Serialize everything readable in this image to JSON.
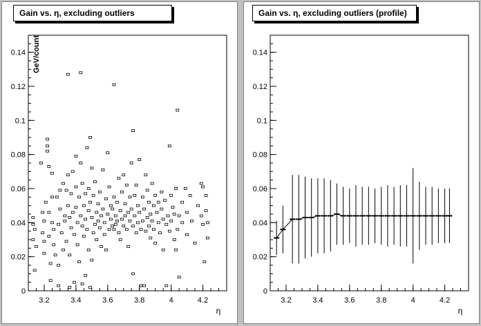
{
  "canvas_background": "#c0c0c0",
  "pad_background": "#ffffff",
  "chart_data": [
    {
      "type": "scatter",
      "title": "Gain vs. η, excluding outliers",
      "xlabel": "η",
      "ylabel": "GeV/count",
      "xlim": [
        3.1,
        4.35
      ],
      "ylim": [
        0,
        0.15
      ],
      "xticks": [
        "3.2",
        "3.4",
        "3.6",
        "3.8",
        "4",
        "4.2"
      ],
      "yticks": [
        "0",
        "0.02",
        "0.04",
        "0.06",
        "0.08",
        "0.1",
        "0.12",
        "0.14"
      ],
      "grid": false,
      "marker": "open-box",
      "points": [
        [
          3.13,
          0.043
        ],
        [
          3.13,
          0.039
        ],
        [
          3.13,
          0.03
        ],
        [
          3.14,
          0.036
        ],
        [
          3.14,
          0.012
        ],
        [
          3.15,
          0.026
        ],
        [
          3.18,
          0.075
        ],
        [
          3.19,
          0.046
        ],
        [
          3.19,
          0.034
        ],
        [
          3.2,
          0.029
        ],
        [
          3.2,
          0.022
        ],
        [
          3.2,
          0.041
        ],
        [
          3.21,
          0.052
        ],
        [
          3.22,
          0.089
        ],
        [
          3.22,
          0.085
        ],
        [
          3.22,
          0.082
        ],
        [
          3.23,
          0.073
        ],
        [
          3.23,
          0.046
        ],
        [
          3.23,
          0.032
        ],
        [
          3.24,
          0.016
        ],
        [
          3.24,
          0.006
        ],
        [
          3.25,
          0.069
        ],
        [
          3.25,
          0.055
        ],
        [
          3.25,
          0.04
        ],
        [
          3.26,
          0.036
        ],
        [
          3.26,
          0.027
        ],
        [
          3.27,
          0.021
        ],
        [
          3.28,
          0.055
        ],
        [
          3.29,
          0.039
        ],
        [
          3.29,
          0.015
        ],
        [
          3.29,
          0.003
        ],
        [
          3.3,
          0.059
        ],
        [
          3.3,
          0.048
        ],
        [
          3.31,
          0.034
        ],
        [
          3.32,
          0.024
        ],
        [
          3.32,
          0.063
        ],
        [
          3.33,
          0.044
        ],
        [
          3.33,
          0.041
        ],
        [
          3.34,
          0.059
        ],
        [
          3.34,
          0.029
        ],
        [
          3.35,
          0.05
        ],
        [
          3.35,
          0.127
        ],
        [
          3.35,
          0.068
        ],
        [
          3.36,
          0.043
        ],
        [
          3.36,
          0.021
        ],
        [
          3.36,
          0.002
        ],
        [
          3.37,
          0.057
        ],
        [
          3.37,
          0.037
        ],
        [
          3.38,
          0.07
        ],
        [
          3.38,
          0.046
        ],
        [
          3.39,
          0.033
        ],
        [
          3.39,
          0.005
        ],
        [
          3.4,
          0.079
        ],
        [
          3.4,
          0.061
        ],
        [
          3.4,
          0.049
        ],
        [
          3.41,
          0.04
        ],
        [
          3.41,
          0.027
        ],
        [
          3.42,
          0.017
        ],
        [
          3.42,
          0.055
        ],
        [
          3.43,
          0.128
        ],
        [
          3.43,
          0.075
        ],
        [
          3.43,
          0.044
        ],
        [
          3.44,
          0.063
        ],
        [
          3.44,
          0.038
        ],
        [
          3.44,
          0.004
        ],
        [
          3.45,
          0.05
        ],
        [
          3.45,
          0.032
        ],
        [
          3.46,
          0.057
        ],
        [
          3.46,
          0.042
        ],
        [
          3.46,
          0.009
        ],
        [
          3.47,
          0.084
        ],
        [
          3.47,
          0.036
        ],
        [
          3.48,
          0.06
        ],
        [
          3.48,
          0.047
        ],
        [
          3.48,
          0.024
        ],
        [
          3.49,
          0.09
        ],
        [
          3.49,
          0.052
        ],
        [
          3.49,
          0.002
        ],
        [
          3.5,
          0.072
        ],
        [
          3.5,
          0.043
        ],
        [
          3.5,
          0.018
        ],
        [
          3.51,
          0.056
        ],
        [
          3.51,
          0.034
        ],
        [
          3.52,
          0.064
        ],
        [
          3.52,
          0.039
        ],
        [
          3.53,
          0.046
        ],
        [
          3.53,
          0.03
        ],
        [
          3.54,
          0.051
        ],
        [
          3.54,
          0.041
        ],
        [
          3.55,
          0.058
        ],
        [
          3.55,
          0.037
        ],
        [
          3.56,
          0.044
        ],
        [
          3.56,
          0.026
        ],
        [
          3.57,
          0.071
        ],
        [
          3.57,
          0.048
        ],
        [
          3.58,
          0.04
        ],
        [
          3.58,
          0.033
        ],
        [
          3.59,
          0.054
        ],
        [
          3.59,
          0.024
        ],
        [
          3.6,
          0.045
        ],
        [
          3.6,
          0.081
        ],
        [
          3.61,
          0.061
        ],
        [
          3.61,
          0.036
        ],
        [
          3.62,
          0.05
        ],
        [
          3.62,
          0.042
        ],
        [
          3.63,
          0.038
        ],
        [
          3.63,
          0.048
        ],
        [
          3.64,
          0.121
        ],
        [
          3.64,
          0.055
        ],
        [
          3.64,
          0.036
        ],
        [
          3.65,
          0.044
        ],
        [
          3.65,
          0.039
        ],
        [
          3.66,
          0.052
        ],
        [
          3.66,
          0.041
        ],
        [
          3.67,
          0.066
        ],
        [
          3.67,
          0.034
        ],
        [
          3.68,
          0.047
        ],
        [
          3.68,
          0.03
        ],
        [
          3.69,
          0.058
        ],
        [
          3.69,
          0.042
        ],
        [
          3.7,
          0.068
        ],
        [
          3.7,
          0.038
        ],
        [
          3.71,
          0.051
        ],
        [
          3.71,
          0.044
        ],
        [
          3.72,
          0.062
        ],
        [
          3.72,
          0.036
        ],
        [
          3.73,
          0.046
        ],
        [
          3.73,
          0.026
        ],
        [
          3.74,
          0.055
        ],
        [
          3.74,
          0.041
        ],
        [
          3.75,
          0.075
        ],
        [
          3.75,
          0.048
        ],
        [
          3.76,
          0.094
        ],
        [
          3.76,
          0.038
        ],
        [
          3.76,
          0.01
        ],
        [
          3.77,
          0.056
        ],
        [
          3.77,
          0.044
        ],
        [
          3.78,
          0.062
        ],
        [
          3.78,
          0.034
        ],
        [
          3.79,
          0.05
        ],
        [
          3.79,
          0.04
        ],
        [
          3.8,
          0.077
        ],
        [
          3.8,
          0.046
        ],
        [
          3.81,
          0.036
        ],
        [
          3.81,
          0.003
        ],
        [
          3.82,
          0.055
        ],
        [
          3.82,
          0.041
        ],
        [
          3.83,
          0.048
        ],
        [
          3.83,
          0.003
        ],
        [
          3.84,
          0.068
        ],
        [
          3.84,
          0.035
        ],
        [
          3.85,
          0.059
        ],
        [
          3.85,
          0.043
        ],
        [
          3.86,
          0.052
        ],
        [
          3.86,
          0.038
        ],
        [
          3.87,
          0.045
        ],
        [
          3.87,
          0.031
        ],
        [
          3.88,
          0.063
        ],
        [
          3.88,
          0.041
        ],
        [
          3.89,
          0.05
        ],
        [
          3.89,
          0.036
        ],
        [
          3.9,
          0.056
        ],
        [
          3.9,
          0.028
        ],
        [
          3.91,
          0.046
        ],
        [
          3.92,
          0.04
        ],
        [
          3.92,
          0.052
        ],
        [
          3.93,
          0.034
        ],
        [
          3.94,
          0.058
        ],
        [
          3.94,
          0.048
        ],
        [
          3.95,
          0.042
        ],
        [
          3.95,
          0.024
        ],
        [
          3.96,
          0.053
        ],
        [
          3.97,
          0.039
        ],
        [
          3.97,
          0.003
        ],
        [
          3.98,
          0.044
        ],
        [
          3.99,
          0.085
        ],
        [
          3.99,
          0.035
        ],
        [
          4.0,
          0.056
        ],
        [
          4.0,
          0.041
        ],
        [
          4.01,
          0.049
        ],
        [
          4.02,
          0.03
        ],
        [
          4.02,
          0.045
        ],
        [
          4.03,
          0.06
        ],
        [
          4.03,
          0.024
        ],
        [
          4.04,
          0.106
        ],
        [
          4.04,
          0.036
        ],
        [
          4.05,
          0.044
        ],
        [
          4.05,
          0.008
        ],
        [
          4.07,
          0.052
        ],
        [
          4.07,
          0.04
        ],
        [
          4.09,
          0.06
        ],
        [
          4.1,
          0.046
        ],
        [
          4.1,
          0.033
        ],
        [
          4.12,
          0.056
        ],
        [
          4.13,
          0.041
        ],
        [
          4.15,
          0.028
        ],
        [
          4.17,
          0.05
        ],
        [
          4.19,
          0.063
        ],
        [
          4.19,
          0.044
        ],
        [
          4.2,
          0.061
        ],
        [
          4.2,
          0.039
        ],
        [
          4.21,
          0.017
        ],
        [
          4.22,
          0.056
        ],
        [
          4.22,
          0.047
        ],
        [
          4.23,
          0.031
        ],
        [
          4.23,
          0.04
        ]
      ]
    },
    {
      "type": "line",
      "title": "Gain vs. η, excluding outliers (profile)",
      "xlabel": "η",
      "ylabel": "",
      "xlim": [
        3.1,
        4.35
      ],
      "ylim": [
        0,
        0.15
      ],
      "xticks": [
        "3.2",
        "3.4",
        "3.6",
        "3.8",
        "4",
        "4.2"
      ],
      "yticks": [
        "0",
        "0.02",
        "0.04",
        "0.06",
        "0.08",
        "0.1",
        "0.12",
        "0.14"
      ],
      "grid": false,
      "series": [
        {
          "x": [
            3.14,
            3.18,
            3.24,
            3.28,
            3.32,
            3.36,
            3.4,
            3.44,
            3.48,
            3.52,
            3.56,
            3.6,
            3.64,
            3.68,
            3.72,
            3.76,
            3.8,
            3.84,
            3.88,
            3.92,
            3.96,
            4.0,
            4.04,
            4.08,
            4.12,
            4.16,
            4.2,
            4.23
          ],
          "y": [
            0.031,
            0.036,
            0.042,
            0.042,
            0.043,
            0.043,
            0.044,
            0.044,
            0.044,
            0.045,
            0.044,
            0.044,
            0.044,
            0.044,
            0.044,
            0.044,
            0.044,
            0.044,
            0.044,
            0.044,
            0.044,
            0.044,
            0.044,
            0.044,
            0.044,
            0.044,
            0.044,
            0.044
          ],
          "err": [
            0.01,
            0.014,
            0.026,
            0.026,
            0.024,
            0.023,
            0.022,
            0.022,
            0.021,
            0.018,
            0.017,
            0.016,
            0.018,
            0.017,
            0.017,
            0.016,
            0.017,
            0.018,
            0.017,
            0.018,
            0.018,
            0.028,
            0.02,
            0.017,
            0.017,
            0.016,
            0.016,
            0.016
          ]
        }
      ]
    }
  ]
}
